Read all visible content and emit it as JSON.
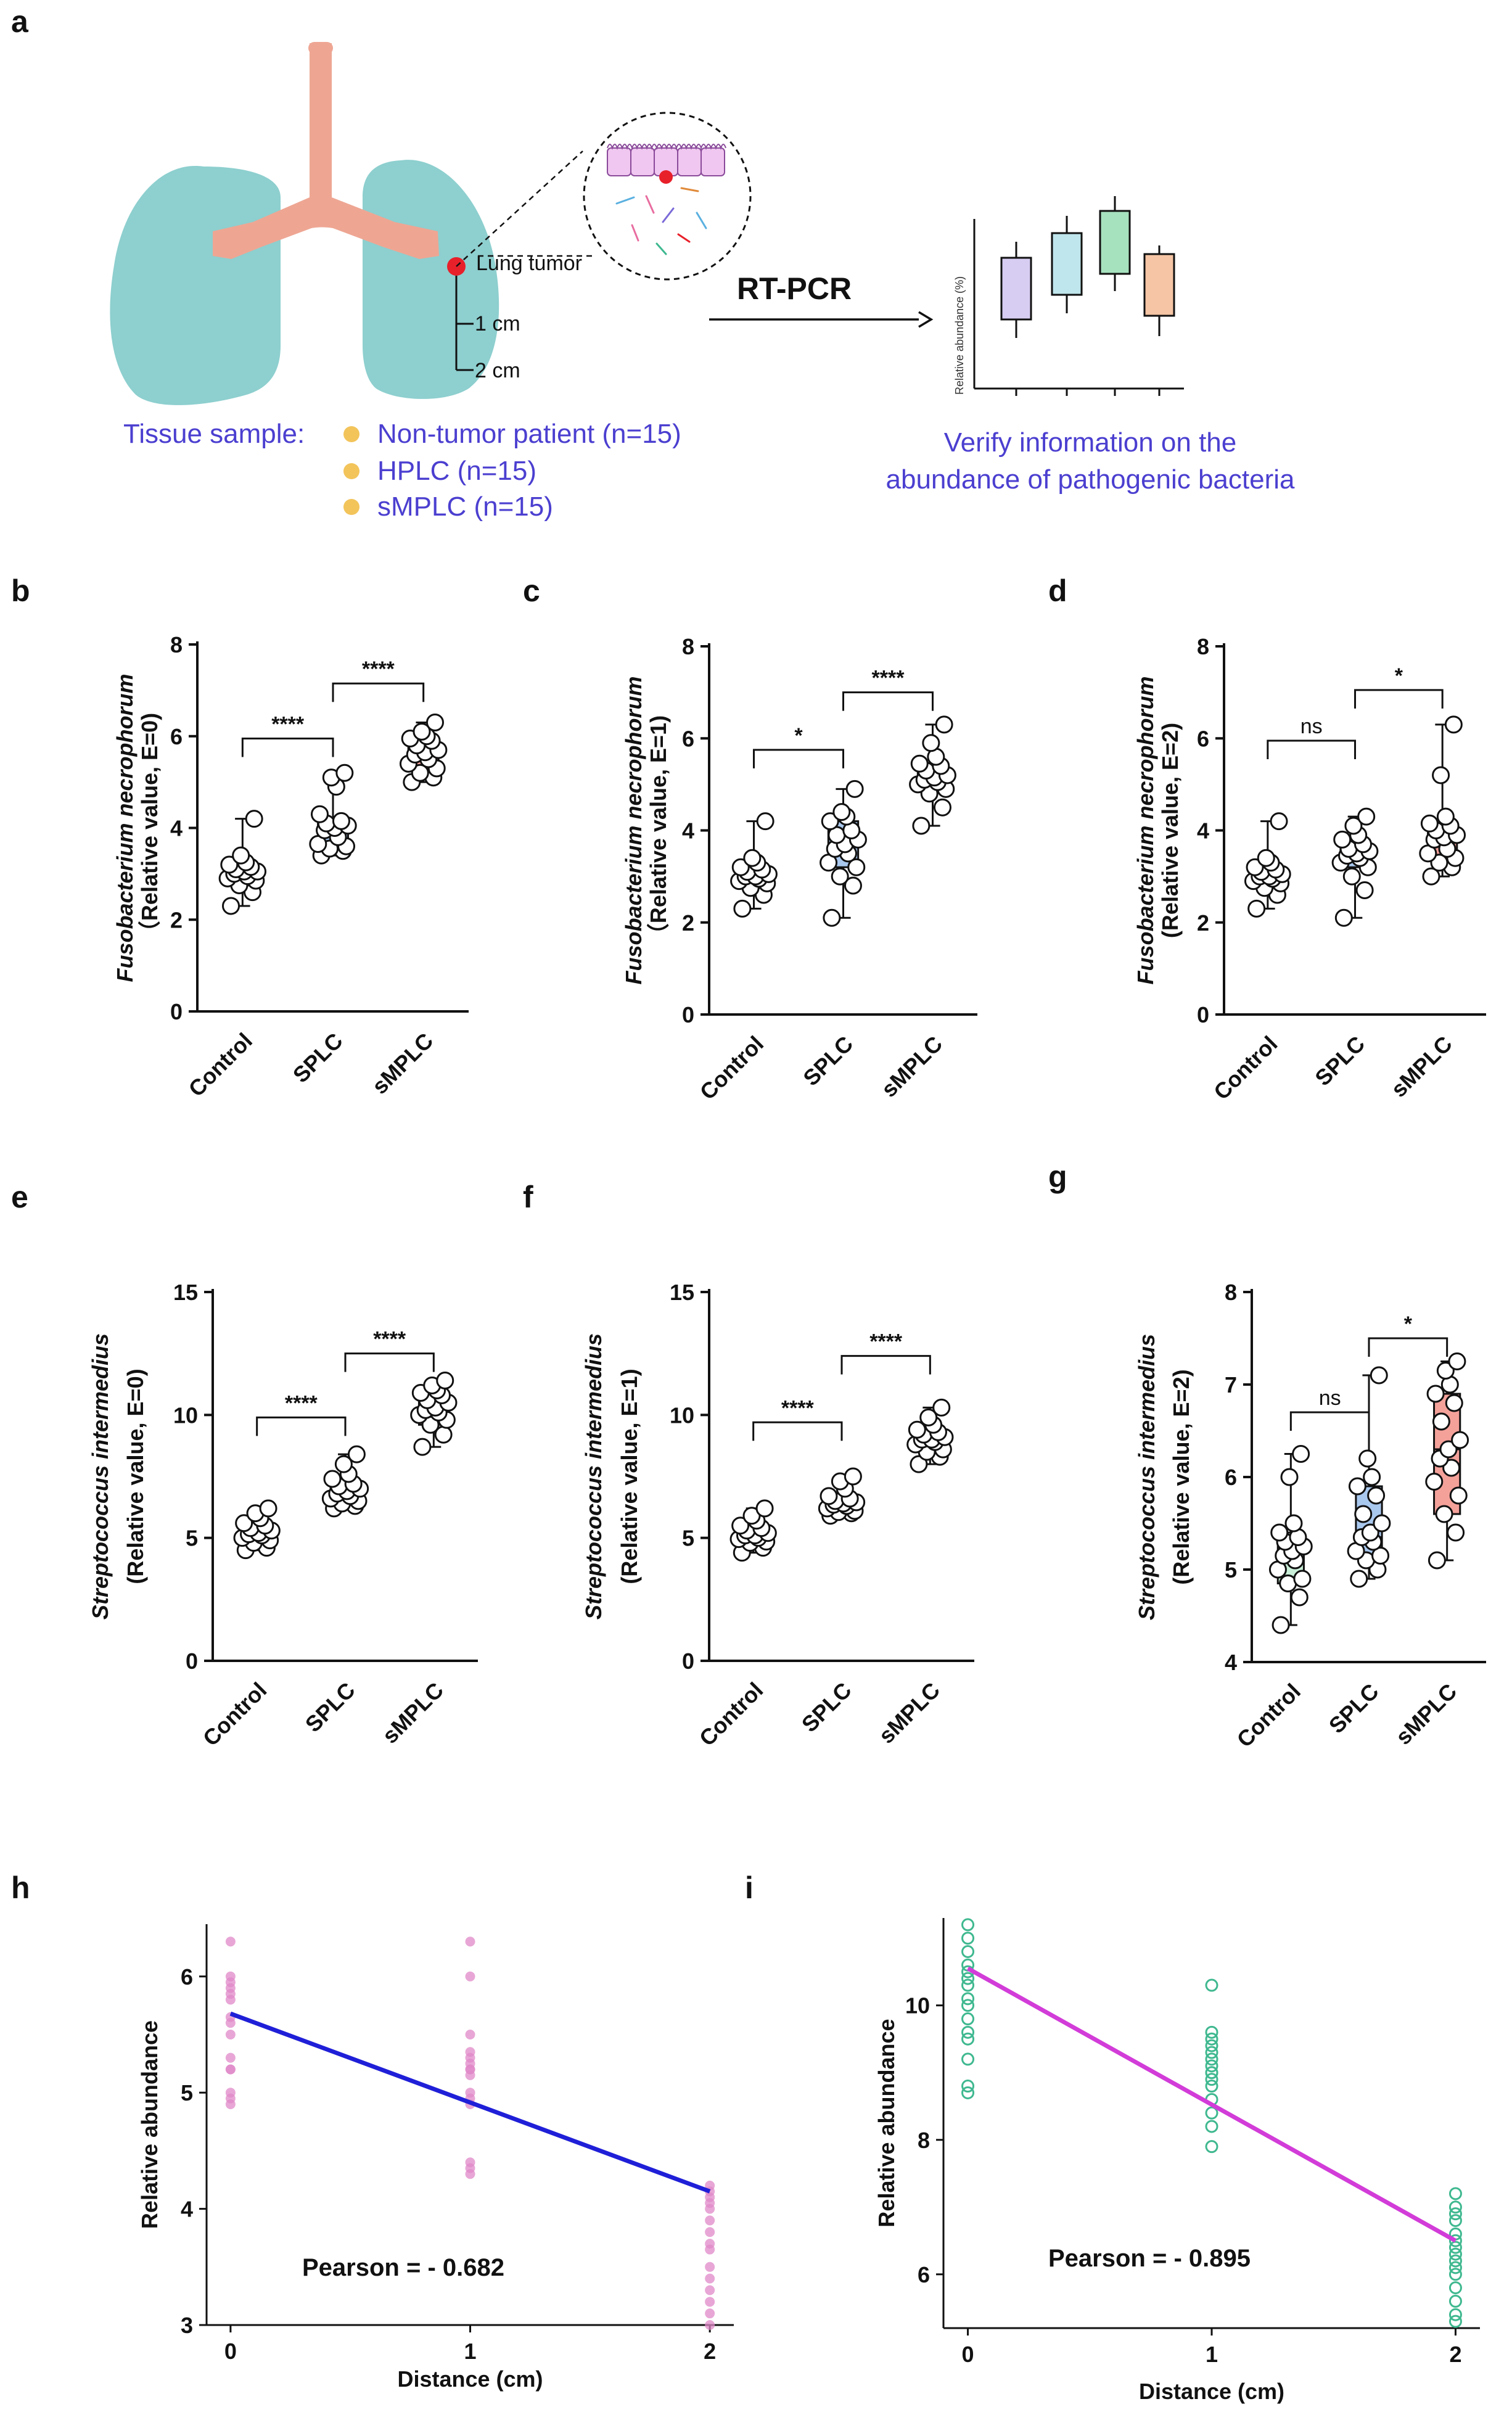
{
  "panel_labels": [
    "a",
    "b",
    "c",
    "d",
    "e",
    "f",
    "g",
    "h",
    "i"
  ],
  "schematic": {
    "lung_tumor_label": "Lung tumor",
    "dist1_label": "1 cm",
    "dist2_label": "2 cm",
    "arrow_label": "RT-PCR",
    "tissue_label": "Tissue sample:",
    "groups": [
      "Non-tumor patient (n=15)",
      "HPLC (n=15)",
      "sMPLC (n=15)"
    ],
    "mini_ylabel": "Relative abundance (%)",
    "verify_line1": "Verify information on the",
    "verify_line2": "abundance of pathogenic bacteria",
    "colors": {
      "lung": "#8ecfcf",
      "trachea": "#eea693",
      "tumor": "#e8202a",
      "dot": "#f2c45a",
      "text": "#4b3fd0"
    }
  },
  "chart_data": [
    {
      "id": "b",
      "type": "box",
      "ylabel_line1": "Fusobacterium necrophorum",
      "ylabel_line2": "（Relative value, E=0)",
      "categories": [
        "Control",
        "SPLC",
        "sMPLC"
      ],
      "ylim": [
        0,
        8
      ],
      "yticks": [
        "0",
        "2",
        "4",
        "6",
        "8"
      ],
      "boxes": [
        {
          "min": 2.3,
          "q1": 2.9,
          "median": 3.05,
          "q3": 3.2,
          "max": 4.2,
          "fill": "#ffffff",
          "points": [
            2.3,
            2.6,
            2.75,
            2.85,
            2.9,
            2.95,
            3.0,
            3.05,
            3.05,
            3.1,
            3.15,
            3.2,
            3.25,
            3.4,
            4.2
          ]
        },
        {
          "min": 3.4,
          "q1": 3.6,
          "median": 4.0,
          "q3": 4.15,
          "max": 5.2,
          "fill": "#a9c8ee",
          "points": [
            3.4,
            3.5,
            3.55,
            3.6,
            3.65,
            3.8,
            3.95,
            4.0,
            4.05,
            4.1,
            4.15,
            4.3,
            4.9,
            5.1,
            5.2
          ]
        },
        {
          "min": 5.0,
          "q1": 5.3,
          "median": 5.65,
          "q3": 5.95,
          "max": 6.3,
          "fill": "#f4a19a",
          "points": [
            5.0,
            5.1,
            5.2,
            5.3,
            5.4,
            5.5,
            5.6,
            5.65,
            5.7,
            5.8,
            5.9,
            5.95,
            6.0,
            6.1,
            6.3
          ]
        }
      ],
      "comparisons": [
        {
          "from": 0,
          "to": 1,
          "y": 5.95,
          "label": "****"
        },
        {
          "from": 1,
          "to": 2,
          "y": 7.15,
          "label": "****"
        }
      ]
    },
    {
      "id": "c",
      "type": "box",
      "ylabel_line1": "Fusobacterium necrophorum",
      "ylabel_line2": "（Relative value, E=1)",
      "categories": [
        "Control",
        "SPLC",
        "sMPLC"
      ],
      "ylim": [
        0,
        8
      ],
      "yticks": [
        "0",
        "2",
        "4",
        "6",
        "8"
      ],
      "boxes": [
        {
          "min": 2.3,
          "q1": 2.85,
          "median": 3.0,
          "q3": 3.2,
          "max": 4.2,
          "fill": "#ffffff",
          "points": [
            2.3,
            2.6,
            2.75,
            2.85,
            2.9,
            2.95,
            3.0,
            3.0,
            3.05,
            3.1,
            3.15,
            3.2,
            3.3,
            3.4,
            4.2
          ]
        },
        {
          "min": 2.1,
          "q1": 3.2,
          "median": 3.7,
          "q3": 4.2,
          "max": 4.9,
          "fill": "#a9c8ee",
          "points": [
            2.1,
            2.8,
            3.0,
            3.2,
            3.3,
            3.5,
            3.6,
            3.7,
            3.8,
            3.9,
            4.0,
            4.2,
            4.3,
            4.4,
            4.9
          ]
        },
        {
          "min": 4.1,
          "q1": 4.9,
          "median": 5.15,
          "q3": 5.45,
          "max": 6.3,
          "fill": "#f4a19a",
          "points": [
            4.1,
            4.5,
            4.8,
            4.9,
            5.0,
            5.05,
            5.1,
            5.15,
            5.2,
            5.3,
            5.4,
            5.45,
            5.6,
            5.9,
            6.3
          ]
        }
      ],
      "comparisons": [
        {
          "from": 0,
          "to": 1,
          "y": 5.75,
          "label": "*"
        },
        {
          "from": 1,
          "to": 2,
          "y": 7.0,
          "label": "****"
        }
      ]
    },
    {
      "id": "d",
      "type": "box",
      "ylabel_line1": "Fusobacterium necrophorum",
      "ylabel_line2": "(Relative value, E=2)",
      "categories": [
        "Control",
        "SPLC",
        "sMPLC"
      ],
      "ylim": [
        0,
        8
      ],
      "yticks": [
        "0",
        "2",
        "4",
        "6",
        "8"
      ],
      "boxes": [
        {
          "min": 2.3,
          "q1": 2.85,
          "median": 3.0,
          "q3": 3.2,
          "max": 4.2,
          "fill": "#ffffff",
          "points": [
            2.3,
            2.6,
            2.75,
            2.85,
            2.9,
            2.95,
            3.0,
            3.0,
            3.05,
            3.1,
            3.15,
            3.2,
            3.3,
            3.4,
            4.2
          ]
        },
        {
          "min": 2.1,
          "q1": 3.2,
          "median": 3.5,
          "q3": 3.8,
          "max": 4.3,
          "fill": "#a9c8ee",
          "points": [
            2.1,
            2.7,
            3.0,
            3.2,
            3.3,
            3.4,
            3.45,
            3.5,
            3.55,
            3.6,
            3.7,
            3.8,
            3.9,
            4.1,
            4.3
          ]
        },
        {
          "min": 3.0,
          "q1": 3.4,
          "median": 3.85,
          "q3": 4.1,
          "max": 6.3,
          "fill": "#f4a19a",
          "points": [
            3.0,
            3.2,
            3.3,
            3.4,
            3.5,
            3.6,
            3.8,
            3.85,
            3.9,
            4.0,
            4.1,
            4.15,
            4.3,
            5.2,
            6.3
          ]
        }
      ],
      "comparisons": [
        {
          "from": 0,
          "to": 1,
          "y": 5.95,
          "label": "ns"
        },
        {
          "from": 1,
          "to": 2,
          "y": 7.05,
          "label": "*"
        }
      ]
    },
    {
      "id": "e",
      "type": "box",
      "ylabel_line1": "Streptococcus intermedius",
      "ylabel_line2": "(Relative value, E=0)",
      "categories": [
        "Control",
        "SPLC",
        "sMPLC"
      ],
      "ylim": [
        0,
        15
      ],
      "yticks": [
        "0",
        "5",
        "10",
        "15"
      ],
      "boxes": [
        {
          "min": 4.5,
          "q1": 4.9,
          "median": 5.2,
          "q3": 5.5,
          "max": 6.2,
          "fill": "#ffffff",
          "points": [
            4.5,
            4.6,
            4.8,
            4.9,
            5.0,
            5.1,
            5.15,
            5.2,
            5.3,
            5.4,
            5.5,
            5.6,
            5.8,
            6.0,
            6.2
          ]
        },
        {
          "min": 6.2,
          "q1": 6.5,
          "median": 6.9,
          "q3": 7.3,
          "max": 8.4,
          "fill": "#a9c8ee",
          "points": [
            6.2,
            6.3,
            6.4,
            6.5,
            6.6,
            6.7,
            6.8,
            6.9,
            7.0,
            7.1,
            7.2,
            7.4,
            7.6,
            8.0,
            8.4
          ]
        },
        {
          "min": 8.7,
          "q1": 9.6,
          "median": 10.3,
          "q3": 10.9,
          "max": 11.4,
          "fill": "#f4a19a",
          "points": [
            8.7,
            9.2,
            9.6,
            9.8,
            10.0,
            10.1,
            10.2,
            10.3,
            10.5,
            10.6,
            10.8,
            10.9,
            11.0,
            11.2,
            11.4
          ]
        }
      ],
      "comparisons": [
        {
          "from": 0,
          "to": 1,
          "y": 9.9,
          "label": "****"
        },
        {
          "from": 1,
          "to": 2,
          "y": 12.5,
          "label": "****"
        }
      ]
    },
    {
      "id": "f",
      "type": "box",
      "ylabel_line1": "Streptococcus intermedius",
      "ylabel_line2": "(Relative value, E=1)",
      "categories": [
        "Control",
        "SPLC",
        "sMPLC"
      ],
      "ylim": [
        0,
        15
      ],
      "yticks": [
        "0",
        "5",
        "10",
        "15"
      ],
      "boxes": [
        {
          "min": 4.4,
          "q1": 4.85,
          "median": 5.1,
          "q3": 5.4,
          "max": 6.2,
          "fill": "#ffffff",
          "points": [
            4.4,
            4.6,
            4.8,
            4.85,
            4.95,
            5.0,
            5.1,
            5.1,
            5.2,
            5.3,
            5.4,
            5.5,
            5.7,
            5.9,
            6.2
          ]
        },
        {
          "min": 5.9,
          "q1": 6.1,
          "median": 6.4,
          "q3": 6.6,
          "max": 7.5,
          "fill": "#a9c8ee",
          "points": [
            5.9,
            6.0,
            6.05,
            6.1,
            6.2,
            6.3,
            6.35,
            6.4,
            6.45,
            6.5,
            6.6,
            6.7,
            7.0,
            7.3,
            7.5
          ]
        },
        {
          "min": 8.0,
          "q1": 8.6,
          "median": 9.0,
          "q3": 9.4,
          "max": 10.3,
          "fill": "#f4a19a",
          "points": [
            8.0,
            8.3,
            8.5,
            8.6,
            8.8,
            8.9,
            9.0,
            9.0,
            9.1,
            9.2,
            9.3,
            9.4,
            9.6,
            9.9,
            10.3
          ]
        }
      ],
      "comparisons": [
        {
          "from": 0,
          "to": 1,
          "y": 9.7,
          "label": "****"
        },
        {
          "from": 1,
          "to": 2,
          "y": 12.4,
          "label": "****"
        }
      ]
    },
    {
      "id": "g",
      "type": "box",
      "ylabel_line1": "Streptococcus intermedius",
      "ylabel_line2": "(Relative value, E=2)",
      "categories": [
        "Control",
        "SPLC",
        "sMPLC"
      ],
      "ylim": [
        4,
        8
      ],
      "yticks": [
        "4",
        "5",
        "6",
        "7",
        "8"
      ],
      "boxes": [
        {
          "min": 4.4,
          "q1": 4.85,
          "median": 5.2,
          "q3": 5.4,
          "max": 6.25,
          "fill": "#c9efd8",
          "points": [
            4.4,
            4.7,
            4.85,
            4.9,
            5.0,
            5.1,
            5.15,
            5.2,
            5.25,
            5.3,
            5.35,
            5.4,
            5.5,
            6.0,
            6.25
          ]
        },
        {
          "min": 4.9,
          "q1": 5.15,
          "median": 5.35,
          "q3": 5.9,
          "max": 7.1,
          "fill": "#a9c8ee",
          "points": [
            4.9,
            5.0,
            5.1,
            5.15,
            5.2,
            5.3,
            5.35,
            5.4,
            5.5,
            5.6,
            5.8,
            5.9,
            6.0,
            6.2,
            7.1
          ]
        },
        {
          "min": 5.1,
          "q1": 5.6,
          "median": 6.3,
          "q3": 6.9,
          "max": 7.25,
          "fill": "#f4a19a",
          "points": [
            5.1,
            5.4,
            5.6,
            5.8,
            5.95,
            6.1,
            6.2,
            6.3,
            6.4,
            6.6,
            6.8,
            6.9,
            7.0,
            7.15,
            7.25
          ]
        }
      ],
      "comparisons": [
        {
          "from": 0,
          "to": 1,
          "y": 6.7,
          "label": "ns"
        },
        {
          "from": 1,
          "to": 2,
          "y": 7.5,
          "label": "*"
        }
      ]
    },
    {
      "id": "h",
      "type": "scatter",
      "xlabel": "Distance (cm)",
      "ylabel": "Relative abundance",
      "xticks": [
        "0",
        "1",
        "2"
      ],
      "yticks": [
        "3",
        "4",
        "5",
        "6"
      ],
      "xlim": [
        -0.1,
        2.1
      ],
      "ylim": [
        3,
        6.45
      ],
      "points_color": "#e088c8",
      "line_color": "#1f1fd8",
      "x": [
        0,
        0,
        0,
        0,
        0,
        0,
        0,
        0,
        0,
        0,
        0,
        0,
        0,
        0,
        0,
        1,
        1,
        1,
        1,
        1,
        1,
        1,
        1,
        1,
        1,
        1,
        1,
        1,
        1,
        1,
        2,
        2,
        2,
        2,
        2,
        2,
        2,
        2,
        2,
        2,
        2,
        2,
        2,
        2,
        2
      ],
      "y": [
        6.3,
        6.0,
        5.95,
        5.85,
        5.8,
        5.6,
        5.5,
        5.3,
        5.2,
        5.2,
        5.0,
        4.95,
        4.9,
        5.9,
        5.65,
        6.3,
        6.0,
        5.5,
        5.35,
        5.25,
        5.2,
        5.2,
        5.15,
        5.0,
        4.95,
        4.9,
        4.4,
        4.35,
        4.3,
        5.3,
        4.2,
        4.15,
        4.1,
        4.05,
        3.9,
        3.8,
        3.65,
        3.5,
        3.4,
        3.3,
        3.1,
        3.0,
        4.0,
        3.7,
        3.2
      ],
      "fit": {
        "x": [
          0,
          2
        ],
        "y": [
          5.68,
          4.15
        ]
      },
      "annotation": "Pearson = - 0.682"
    },
    {
      "id": "i",
      "type": "scatter",
      "xlabel": "Distance (cm)",
      "ylabel": "Relative abundance",
      "xticks": [
        "0",
        "1",
        "2"
      ],
      "yticks": [
        "6",
        "8",
        "10"
      ],
      "xlim": [
        -0.1,
        2.1
      ],
      "ylim": [
        5.2,
        11.3
      ],
      "points_color": "#3fb890",
      "line_color": "#d23cd8",
      "x": [
        0,
        0,
        0,
        0,
        0,
        0,
        0,
        0,
        0,
        0,
        0,
        0,
        0,
        0,
        0,
        1,
        1,
        1,
        1,
        1,
        1,
        1,
        1,
        1,
        1,
        1,
        1,
        1,
        1,
        1,
        2,
        2,
        2,
        2,
        2,
        2,
        2,
        2,
        2,
        2,
        2,
        2,
        2,
        2,
        2
      ],
      "y": [
        11.2,
        11.0,
        10.8,
        10.5,
        10.4,
        10.3,
        10.1,
        9.8,
        9.6,
        9.5,
        9.2,
        8.8,
        8.7,
        10.6,
        10.0,
        10.3,
        9.6,
        9.4,
        9.3,
        9.2,
        9.1,
        9.0,
        8.9,
        8.8,
        8.6,
        8.4,
        8.2,
        7.9,
        9.5,
        9.0,
        7.2,
        7.0,
        6.8,
        6.6,
        6.4,
        6.3,
        6.2,
        6.0,
        5.8,
        5.6,
        5.4,
        5.3,
        6.9,
        6.5,
        6.1
      ],
      "fit": {
        "x": [
          0,
          2
        ],
        "y": [
          10.55,
          6.5
        ]
      },
      "annotation": "Pearson = - 0.895"
    }
  ]
}
